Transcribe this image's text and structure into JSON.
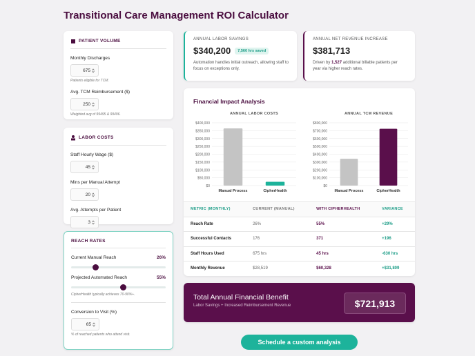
{
  "header": {
    "title": "Transitional Care Management ROI Calculator"
  },
  "panels": [
    {
      "heading": "PATIENT VOLUME",
      "fields": [
        {
          "label": "Monthly Discharges",
          "value": 675,
          "note": "Patients eligible for TCM."
        },
        {
          "label": "Avg. TCM Reimbursement ($)",
          "value": 250,
          "note": "Weighted avg of 99495 & 99496."
        }
      ]
    },
    {
      "heading": "LABOR COSTS",
      "fields": [
        {
          "label": "Staff Hourly Wage ($)",
          "value": 45
        },
        {
          "label": "Mins per Manual Attempt",
          "value": 20
        },
        {
          "label": "Avg. Attempts per Patient",
          "value": 3
        }
      ]
    },
    {
      "heading": "REACH RATES",
      "fields": [
        {
          "label": "Current Manual Reach",
          "slider": 26,
          "slider_label": "26%"
        },
        {
          "label": "Projected Automated Reach",
          "slider": 55,
          "slider_label": "55%",
          "note": "CipherHealth typically achieves 70-90%+."
        },
        {
          "label": "Conversion to Visit (%)",
          "value": 65,
          "note": "% of reached patients who attend visit."
        }
      ]
    }
  ],
  "cards": [
    {
      "title": "ANNUAL LABOR SAVINGS",
      "value": "$340,200",
      "badge": "7,560 hrs saved",
      "text": "Automation handles initial outreach, allowing staff to focus on exceptions only."
    },
    {
      "title": "ANNUAL NET REVENUE INCREASE",
      "value": "$381,713",
      "text_before": "Driven by",
      "highlight": "1,527",
      "text_after": "additional billable patients per year via higher reach rates."
    }
  ],
  "impact": {
    "title": "Financial Impact Analysis"
  },
  "chart_data": [
    {
      "type": "bar",
      "title": "ANNUAL LABOR COSTS",
      "categories": [
        "Manual Process",
        "CipherHealth"
      ],
      "values": [
        364500,
        24300
      ],
      "colors": [
        "#c4c4c4",
        "#1db39b"
      ],
      "ylim": [
        0,
        400000
      ],
      "yticks": [
        {
          "value": 0,
          "label": "$0"
        },
        {
          "value": 50000,
          "label": "$50,000"
        },
        {
          "value": 100000,
          "label": "$100,000"
        },
        {
          "value": 150000,
          "label": "$150,000"
        },
        {
          "value": 200000,
          "label": "$200,000"
        },
        {
          "value": 250000,
          "label": "$250,000"
        },
        {
          "value": 300000,
          "label": "$300,000"
        },
        {
          "value": 350000,
          "label": "$350,000"
        },
        {
          "value": 400000,
          "label": "$400,000"
        }
      ],
      "grid": true
    },
    {
      "type": "bar",
      "title": "ANNUAL TCM REVENUE",
      "categories": [
        "Manual Process",
        "CipherHealth"
      ],
      "values": [
        342225,
        723938
      ],
      "colors": [
        "#c4c4c4",
        "#5a0f4b"
      ],
      "ylim": [
        0,
        800000
      ],
      "yticks": [
        {
          "value": 0,
          "label": "$0"
        },
        {
          "value": 100000,
          "label": "$100,000"
        },
        {
          "value": 200000,
          "label": "$200,000"
        },
        {
          "value": 300000,
          "label": "$300,000"
        },
        {
          "value": 400000,
          "label": "$400,000"
        },
        {
          "value": 500000,
          "label": "$500,000"
        },
        {
          "value": 600000,
          "label": "$600,000"
        },
        {
          "value": 700000,
          "label": "$700,000"
        },
        {
          "value": 800000,
          "label": "$800,000"
        }
      ],
      "grid": true
    }
  ],
  "table": {
    "header": [
      "METRIC (MONTHLY)",
      "CURRENT (MANUAL)",
      "WITH CIPHERHEALTH",
      "VARIANCE"
    ],
    "rows": [
      [
        "Reach Rate",
        "26%",
        "55%",
        "+29%"
      ],
      [
        "Successful Contacts",
        "176",
        "371",
        "+196"
      ],
      [
        "Staff Hours Used",
        "675 hrs",
        "45 hrs",
        "-630 hrs"
      ],
      [
        "Monthly Revenue",
        "$28,519",
        "$60,328",
        "+$31,809"
      ]
    ]
  },
  "benefit": {
    "title": "Total Annual Financial Benefit",
    "subtitle": "Labor Savings + Increased Reimbursement Revenue",
    "value": "$721,913"
  },
  "cta": {
    "label": "Schedule a custom analysis"
  }
}
